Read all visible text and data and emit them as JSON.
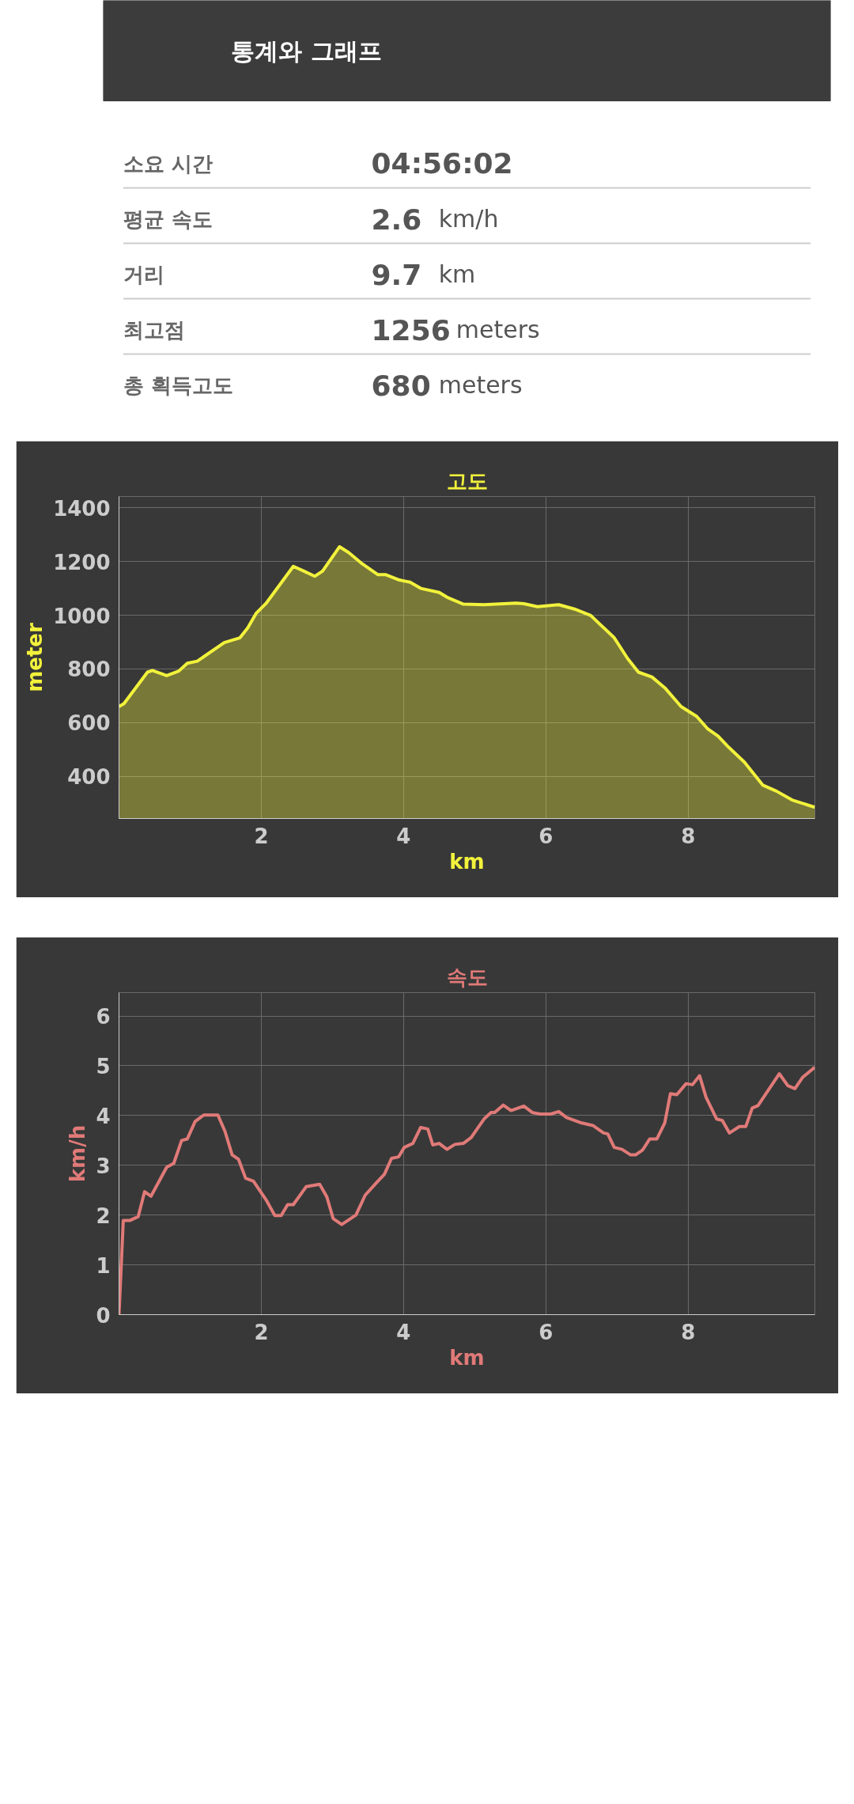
{
  "chart_data": [
    {
      "type": "other",
      "title": "통계와 그래프",
      "annotations": [
        "소요 시간",
        "04:56:02",
        "평균 속도",
        "2.6 km/h",
        "거리",
        "9.7 km",
        "최고점",
        "1256 meters",
        "총 획득고도",
        "680 meters"
      ]
    },
    {
      "type": "area",
      "title": "고도",
      "xlabel": "km",
      "ylabel": "meter",
      "xlim": [
        0,
        9.78
      ],
      "ylim": [
        243,
        1442
      ],
      "xticks": [
        2,
        4,
        6,
        8
      ],
      "yticks": [
        400,
        600,
        800,
        1000,
        1200,
        1400
      ],
      "grid": true,
      "x": [
        0,
        0.07,
        0.4,
        0.47,
        0.67,
        0.84,
        0.96,
        1.1,
        1.48,
        1.7,
        1.81,
        1.93,
        2.07,
        2.45,
        2.6,
        2.75,
        2.86,
        3.1,
        3.23,
        3.42,
        3.64,
        3.75,
        3.94,
        4.09,
        4.24,
        4.5,
        4.61,
        4.84,
        5.13,
        5.58,
        5.69,
        5.88,
        6.18,
        6.4,
        6.63,
        6.96,
        7.15,
        7.3,
        7.49,
        7.67,
        7.9,
        8.12,
        8.27,
        8.42,
        8.57,
        8.79,
        9.05,
        9.24,
        9.46,
        9.78
      ],
      "series": [
        {
          "color": "#f2f23c",
          "values": [
            660,
            671,
            788,
            794,
            775,
            792,
            821,
            829,
            898,
            916,
            953,
            1008,
            1045,
            1182,
            1164,
            1145,
            1164,
            1255,
            1233,
            1191,
            1151,
            1151,
            1131,
            1123,
            1100,
            1085,
            1067,
            1041,
            1039,
            1045,
            1043,
            1032,
            1039,
            1023,
            999,
            916,
            838,
            788,
            770,
            730,
            660,
            623,
            578,
            550,
            508,
            453,
            367,
            345,
            312,
            285
          ]
        }
      ]
    },
    {
      "type": "line",
      "title": "속도",
      "xlabel": "km",
      "ylabel": "km/h",
      "xlim": [
        0,
        9.78
      ],
      "ylim": [
        0,
        6.47
      ],
      "xticks": [
        2,
        4,
        6,
        8
      ],
      "yticks": [
        0,
        1,
        2,
        3,
        4,
        5,
        6
      ],
      "grid": true,
      "x": [
        0,
        0.06,
        0.15,
        0.27,
        0.36,
        0.45,
        0.67,
        0.77,
        0.88,
        0.96,
        1.07,
        1.19,
        1.39,
        1.49,
        1.59,
        1.68,
        1.78,
        1.89,
        2.07,
        2.19,
        2.28,
        2.37,
        2.45,
        2.63,
        2.82,
        2.92,
        3.01,
        3.13,
        3.33,
        3.46,
        3.63,
        3.73,
        3.83,
        3.93,
        4.01,
        4.13,
        4.24,
        4.34,
        4.41,
        4.5,
        4.61,
        4.72,
        4.84,
        4.95,
        5.13,
        5.23,
        5.28,
        5.4,
        5.51,
        5.69,
        5.81,
        5.92,
        6.07,
        6.18,
        6.29,
        6.48,
        6.66,
        6.81,
        6.87,
        6.96,
        7.07,
        7.19,
        7.26,
        7.36,
        7.46,
        7.56,
        7.67,
        7.75,
        7.84,
        7.97,
        8.06,
        8.16,
        8.25,
        8.4,
        8.48,
        8.58,
        8.72,
        8.81,
        8.9,
        8.98,
        9.28,
        9.4,
        9.5,
        9.61,
        9.78
      ],
      "series": [
        {
          "color": "#e07a78",
          "values": [
            0,
            1.89,
            1.89,
            1.97,
            2.47,
            2.38,
            2.96,
            3.04,
            3.5,
            3.53,
            3.88,
            4.01,
            4.01,
            3.68,
            3.21,
            3.12,
            2.74,
            2.68,
            2.3,
            1.99,
            1.99,
            2.21,
            2.21,
            2.57,
            2.62,
            2.37,
            1.93,
            1.81,
            2.0,
            2.4,
            2.67,
            2.82,
            3.14,
            3.17,
            3.36,
            3.44,
            3.76,
            3.73,
            3.41,
            3.44,
            3.32,
            3.42,
            3.44,
            3.56,
            3.93,
            4.06,
            4.06,
            4.21,
            4.1,
            4.19,
            4.06,
            4.03,
            4.03,
            4.08,
            3.96,
            3.86,
            3.8,
            3.65,
            3.63,
            3.36,
            3.32,
            3.21,
            3.21,
            3.31,
            3.53,
            3.53,
            3.85,
            4.44,
            4.42,
            4.64,
            4.62,
            4.8,
            4.37,
            3.93,
            3.9,
            3.65,
            3.78,
            3.78,
            4.15,
            4.2,
            4.84,
            4.6,
            4.54,
            4.77,
            4.97
          ]
        }
      ]
    }
  ]
}
